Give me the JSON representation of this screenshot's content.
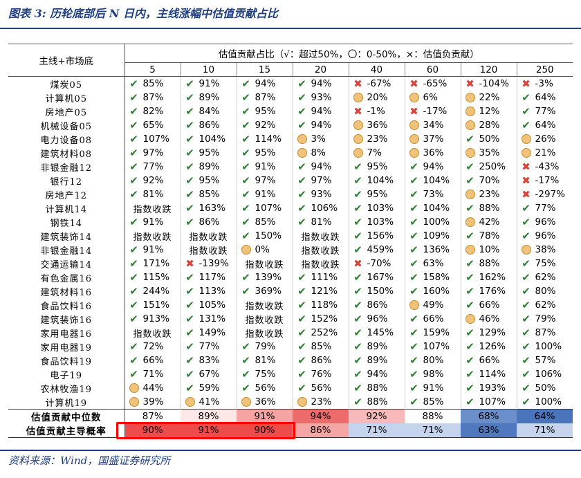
{
  "title": "图表 3:  历轮底部后 N 日内，主线涨幅中估值贡献占比",
  "source": "资料来源：Wind，国盛证券研究所",
  "table": {
    "corner_label": "主线+市场底",
    "header_title": "估值贡献占比（√：超过50%，〇：0-50%，×：估值负贡献）",
    "columns": [
      "5",
      "10",
      "15",
      "20",
      "40",
      "60",
      "120",
      "250"
    ],
    "rows": [
      {
        "label": "煤炭05",
        "cells": [
          [
            "check",
            "85%"
          ],
          [
            "check",
            "91%"
          ],
          [
            "check",
            "94%"
          ],
          [
            "check",
            "94%"
          ],
          [
            "cross",
            "-67%"
          ],
          [
            "cross",
            "-65%"
          ],
          [
            "cross",
            "-104%"
          ],
          [
            "cross",
            "-3%"
          ]
        ]
      },
      {
        "label": "计算机05",
        "cells": [
          [
            "check",
            "87%"
          ],
          [
            "check",
            "89%"
          ],
          [
            "check",
            "87%"
          ],
          [
            "check",
            "93%"
          ],
          [
            "circle",
            "20%"
          ],
          [
            "circle",
            "6%"
          ],
          [
            "circle",
            "22%"
          ],
          [
            "check",
            "64%"
          ]
        ]
      },
      {
        "label": "房地产05",
        "cells": [
          [
            "check",
            "82%"
          ],
          [
            "check",
            "84%"
          ],
          [
            "check",
            "95%"
          ],
          [
            "check",
            "94%"
          ],
          [
            "cross",
            "-1%"
          ],
          [
            "cross",
            "-17%"
          ],
          [
            "circle",
            "12%"
          ],
          [
            "check",
            "77%"
          ]
        ]
      },
      {
        "label": "机械设备05",
        "cells": [
          [
            "check",
            "65%"
          ],
          [
            "check",
            "86%"
          ],
          [
            "check",
            "92%"
          ],
          [
            "check",
            "94%"
          ],
          [
            "circle",
            "36%"
          ],
          [
            "circle",
            "34%"
          ],
          [
            "circle",
            "28%"
          ],
          [
            "check",
            "64%"
          ]
        ]
      },
      {
        "label": "电力设备08",
        "cells": [
          [
            "check",
            "107%"
          ],
          [
            "check",
            "104%"
          ],
          [
            "check",
            "114%"
          ],
          [
            "circle",
            "3%"
          ],
          [
            "circle",
            "23%"
          ],
          [
            "circle",
            "37%"
          ],
          [
            "check",
            "50%"
          ],
          [
            "circle",
            "26%"
          ]
        ]
      },
      {
        "label": "建筑材料08",
        "cells": [
          [
            "check",
            "97%"
          ],
          [
            "check",
            "95%"
          ],
          [
            "check",
            "95%"
          ],
          [
            "circle",
            "8%"
          ],
          [
            "circle",
            "7%"
          ],
          [
            "circle",
            "36%"
          ],
          [
            "circle",
            "35%"
          ],
          [
            "circle",
            "21%"
          ]
        ]
      },
      {
        "label": "非银金融12",
        "cells": [
          [
            "check",
            "77%"
          ],
          [
            "check",
            "89%"
          ],
          [
            "check",
            "91%"
          ],
          [
            "check",
            "94%"
          ],
          [
            "check",
            "95%"
          ],
          [
            "check",
            "94%"
          ],
          [
            "check",
            "250%"
          ],
          [
            "cross",
            "-43%"
          ]
        ]
      },
      {
        "label": "银行12",
        "cells": [
          [
            "check",
            "92%"
          ],
          [
            "check",
            "95%"
          ],
          [
            "check",
            "97%"
          ],
          [
            "check",
            "97%"
          ],
          [
            "check",
            "104%"
          ],
          [
            "check",
            "104%"
          ],
          [
            "check",
            "70%"
          ],
          [
            "cross",
            "-17%"
          ]
        ]
      },
      {
        "label": "房地产12",
        "cells": [
          [
            "check",
            "81%"
          ],
          [
            "check",
            "85%"
          ],
          [
            "check",
            "91%"
          ],
          [
            "check",
            "93%"
          ],
          [
            "check",
            "95%"
          ],
          [
            "check",
            "73%"
          ],
          [
            "circle",
            "23%"
          ],
          [
            "cross",
            "-297%"
          ]
        ]
      },
      {
        "label": "计算机14",
        "cells": [
          [
            "text",
            "指数收跌"
          ],
          [
            "check",
            "163%"
          ],
          [
            "check",
            "107%"
          ],
          [
            "check",
            "106%"
          ],
          [
            "check",
            "103%"
          ],
          [
            "check",
            "104%"
          ],
          [
            "check",
            "88%"
          ],
          [
            "check",
            "77%"
          ]
        ]
      },
      {
        "label": "钢铁14",
        "cells": [
          [
            "check",
            "91%"
          ],
          [
            "check",
            "86%"
          ],
          [
            "check",
            "85%"
          ],
          [
            "check",
            "81%"
          ],
          [
            "check",
            "103%"
          ],
          [
            "check",
            "100%"
          ],
          [
            "circle",
            "42%"
          ],
          [
            "check",
            "96%"
          ]
        ]
      },
      {
        "label": "建筑装饰14",
        "cells": [
          [
            "text",
            "指数收跌"
          ],
          [
            "text",
            "指数收跌"
          ],
          [
            "check",
            "150%"
          ],
          [
            "text",
            "指数收跌"
          ],
          [
            "check",
            "156%"
          ],
          [
            "check",
            "109%"
          ],
          [
            "check",
            "78%"
          ],
          [
            "check",
            "96%"
          ]
        ]
      },
      {
        "label": "非银金融14",
        "cells": [
          [
            "check",
            "91%"
          ],
          [
            "text",
            "指数收跌"
          ],
          [
            "circle",
            "0%"
          ],
          [
            "text",
            "指数收跌"
          ],
          [
            "check",
            "459%"
          ],
          [
            "check",
            "136%"
          ],
          [
            "circle",
            "10%"
          ],
          [
            "circle",
            "38%"
          ]
        ]
      },
      {
        "label": "交通运输14",
        "cells": [
          [
            "check",
            "171%"
          ],
          [
            "cross",
            "-139%"
          ],
          [
            "text",
            "指数收跌"
          ],
          [
            "text",
            "指数收跌"
          ],
          [
            "cross",
            "-70%"
          ],
          [
            "check",
            "63%"
          ],
          [
            "check",
            "88%"
          ],
          [
            "check",
            "75%"
          ]
        ]
      },
      {
        "label": "有色金属16",
        "cells": [
          [
            "check",
            "115%"
          ],
          [
            "check",
            "117%"
          ],
          [
            "check",
            "139%"
          ],
          [
            "check",
            "111%"
          ],
          [
            "check",
            "167%"
          ],
          [
            "check",
            "158%"
          ],
          [
            "check",
            "162%"
          ],
          [
            "check",
            "62%"
          ]
        ]
      },
      {
        "label": "建筑材料16",
        "cells": [
          [
            "check",
            "244%"
          ],
          [
            "check",
            "113%"
          ],
          [
            "check",
            "369%"
          ],
          [
            "check",
            "121%"
          ],
          [
            "check",
            "150%"
          ],
          [
            "check",
            "160%"
          ],
          [
            "check",
            "176%"
          ],
          [
            "check",
            "80%"
          ]
        ]
      },
      {
        "label": "食品饮料16",
        "cells": [
          [
            "check",
            "151%"
          ],
          [
            "check",
            "105%"
          ],
          [
            "text",
            "指数收跌"
          ],
          [
            "check",
            "118%"
          ],
          [
            "check",
            "86%"
          ],
          [
            "circle",
            "49%"
          ],
          [
            "check",
            "66%"
          ],
          [
            "check",
            "62%"
          ]
        ]
      },
      {
        "label": "建筑装饰16",
        "cells": [
          [
            "check",
            "913%"
          ],
          [
            "check",
            "131%"
          ],
          [
            "text",
            "指数收跌"
          ],
          [
            "check",
            "152%"
          ],
          [
            "check",
            "96%"
          ],
          [
            "check",
            "66%"
          ],
          [
            "circle",
            "46%"
          ],
          [
            "check",
            "79%"
          ]
        ]
      },
      {
        "label": "家用电器16",
        "cells": [
          [
            "text",
            "指数收跌"
          ],
          [
            "check",
            "149%"
          ],
          [
            "text",
            "指数收跌"
          ],
          [
            "check",
            "252%"
          ],
          [
            "check",
            "145%"
          ],
          [
            "check",
            "159%"
          ],
          [
            "check",
            "129%"
          ],
          [
            "check",
            "87%"
          ]
        ]
      },
      {
        "label": "家用电器19",
        "cells": [
          [
            "check",
            "72%"
          ],
          [
            "check",
            "77%"
          ],
          [
            "check",
            "79%"
          ],
          [
            "check",
            "85%"
          ],
          [
            "check",
            "89%"
          ],
          [
            "check",
            "107%"
          ],
          [
            "check",
            "126%"
          ],
          [
            "check",
            "100%"
          ]
        ]
      },
      {
        "label": "食品饮料19",
        "cells": [
          [
            "check",
            "66%"
          ],
          [
            "check",
            "83%"
          ],
          [
            "check",
            "81%"
          ],
          [
            "check",
            "86%"
          ],
          [
            "check",
            "89%"
          ],
          [
            "check",
            "80%"
          ],
          [
            "check",
            "66%"
          ],
          [
            "check",
            "57%"
          ]
        ]
      },
      {
        "label": "电子19",
        "cells": [
          [
            "check",
            "71%"
          ],
          [
            "check",
            "67%"
          ],
          [
            "check",
            "75%"
          ],
          [
            "check",
            "76%"
          ],
          [
            "check",
            "94%"
          ],
          [
            "check",
            "98%"
          ],
          [
            "check",
            "114%"
          ],
          [
            "check",
            "106%"
          ]
        ]
      },
      {
        "label": "农林牧渔19",
        "cells": [
          [
            "circle",
            "44%"
          ],
          [
            "check",
            "59%"
          ],
          [
            "check",
            "56%"
          ],
          [
            "check",
            "56%"
          ],
          [
            "check",
            "88%"
          ],
          [
            "check",
            "91%"
          ],
          [
            "check",
            "193%"
          ],
          [
            "check",
            "50%"
          ]
        ]
      },
      {
        "label": "计算机19",
        "cells": [
          [
            "circle",
            "39%"
          ],
          [
            "circle",
            "41%"
          ],
          [
            "circle",
            "36%"
          ],
          [
            "circle",
            "23%"
          ],
          [
            "check",
            "88%"
          ],
          [
            "check",
            "85%"
          ],
          [
            "check",
            "107%"
          ],
          [
            "check",
            "100%"
          ]
        ]
      }
    ],
    "summary": [
      {
        "label": "估值贡献中位数",
        "values": [
          "87%",
          "89%",
          "91%",
          "94%",
          "92%",
          "88%",
          "68%",
          "64%"
        ],
        "colors": [
          "#ffffff",
          "#fde7e7",
          "#f5a3a3",
          "#ee6b6b",
          "#f7b9b9",
          "#fdfdfd",
          "#6b8fca",
          "#4a74bc"
        ]
      },
      {
        "label": "估值贡献主导概率",
        "values": [
          "90%",
          "91%",
          "90%",
          "86%",
          "71%",
          "71%",
          "63%",
          "71%"
        ],
        "colors": [
          "#ee4b4b",
          "#ee4b4b",
          "#ee4b4b",
          "#f6a5a5",
          "#c5d4ec",
          "#c5d4ec",
          "#4f78bf",
          "#c5d4ec"
        ]
      }
    ]
  },
  "icons": {
    "check": "check-icon",
    "cross": "cross-icon",
    "circle": "circle-icon"
  },
  "highlight_color": "#ff0000"
}
